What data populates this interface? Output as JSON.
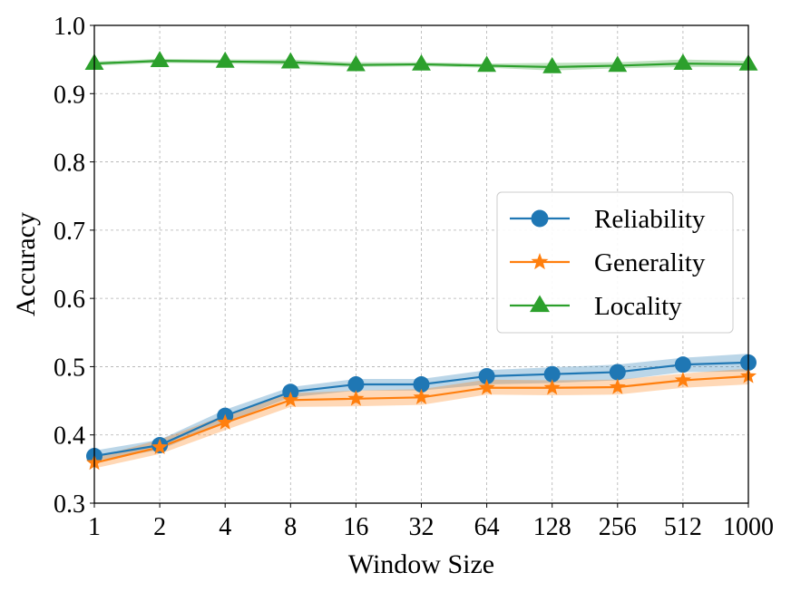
{
  "chart_data": {
    "type": "line",
    "xlabel": "Window Size",
    "ylabel": "Accuracy",
    "x_categories": [
      "1",
      "2",
      "4",
      "8",
      "16",
      "32",
      "64",
      "128",
      "256",
      "512",
      "1000"
    ],
    "x_scale": "categorical (log-spaced window sizes)",
    "ylim": [
      0.3,
      1.0
    ],
    "yticks": [
      "0.3",
      "0.4",
      "0.5",
      "0.6",
      "0.7",
      "0.8",
      "0.9",
      "1.0"
    ],
    "grid": true,
    "legend_position": "center-right",
    "series": [
      {
        "name": "Reliability",
        "color": "#1f77b4",
        "marker": "circle",
        "values": [
          0.369,
          0.385,
          0.428,
          0.463,
          0.474,
          0.474,
          0.486,
          0.489,
          0.492,
          0.503,
          0.506
        ],
        "band_low": [
          0.362,
          0.378,
          0.418,
          0.455,
          0.465,
          0.465,
          0.474,
          0.476,
          0.48,
          0.492,
          0.493
        ],
        "band_high": [
          0.377,
          0.393,
          0.437,
          0.47,
          0.482,
          0.482,
          0.495,
          0.499,
          0.503,
          0.513,
          0.519
        ]
      },
      {
        "name": "Generality",
        "color": "#ff7f0e",
        "marker": "star",
        "values": [
          0.359,
          0.382,
          0.418,
          0.451,
          0.453,
          0.455,
          0.469,
          0.469,
          0.47,
          0.48,
          0.486
        ],
        "band_low": [
          0.351,
          0.372,
          0.407,
          0.441,
          0.442,
          0.444,
          0.459,
          0.458,
          0.459,
          0.469,
          0.474
        ],
        "band_high": [
          0.367,
          0.393,
          0.429,
          0.461,
          0.465,
          0.467,
          0.481,
          0.48,
          0.481,
          0.49,
          0.497
        ]
      },
      {
        "name": "Locality",
        "color": "#2ca02c",
        "marker": "triangle",
        "values": [
          0.944,
          0.948,
          0.947,
          0.946,
          0.942,
          0.943,
          0.941,
          0.939,
          0.941,
          0.944,
          0.943
        ],
        "band_low": [
          0.941,
          0.945,
          0.944,
          0.942,
          0.939,
          0.94,
          0.938,
          0.934,
          0.937,
          0.939,
          0.939
        ],
        "band_high": [
          0.947,
          0.951,
          0.95,
          0.95,
          0.946,
          0.946,
          0.944,
          0.945,
          0.946,
          0.95,
          0.948
        ]
      }
    ]
  }
}
